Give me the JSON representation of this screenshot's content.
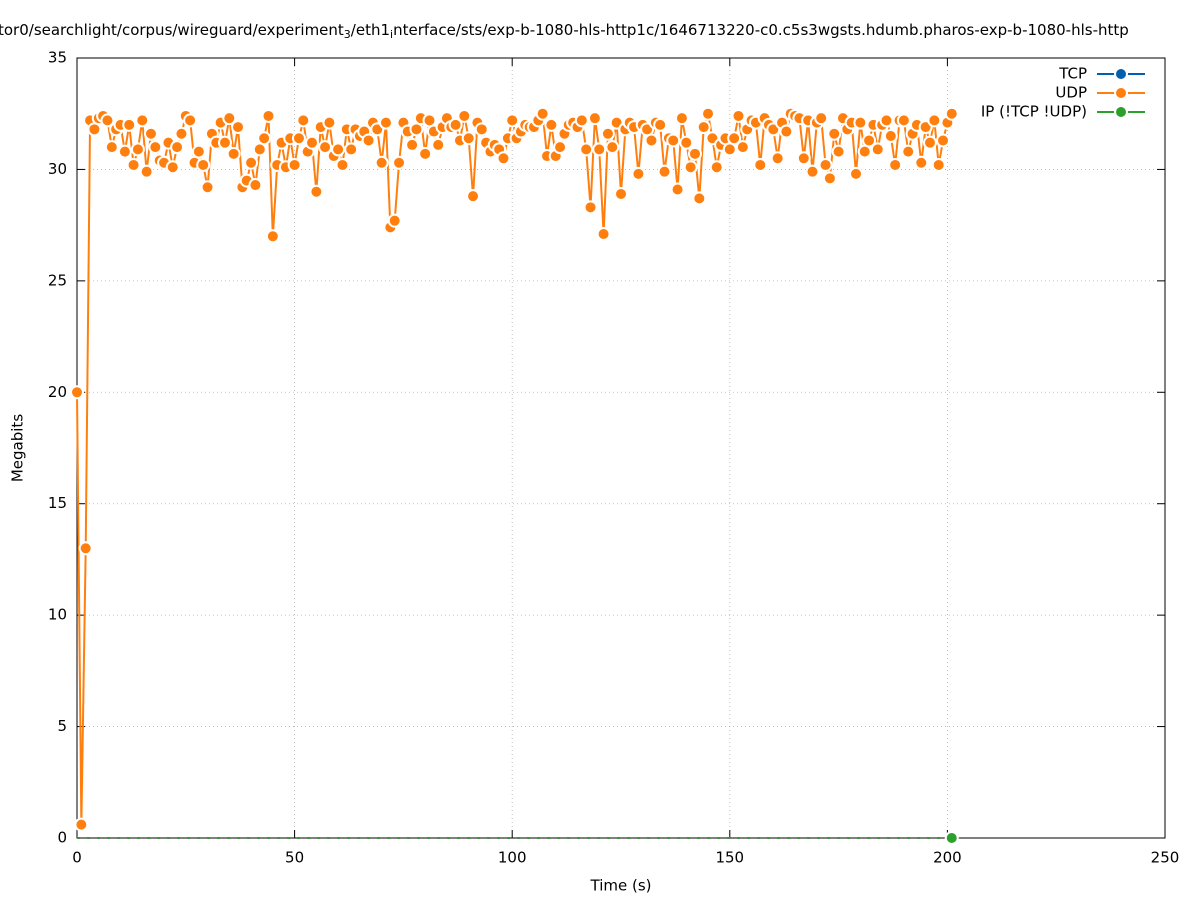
{
  "chart_data": {
    "type": "line",
    "title_parts": [
      "tor0/searchlight/corpus/wireguard/experiment",
      "3",
      "/eth1",
      "i",
      "nterface/sts/exp-b-1080-hls-http1c/1646713220-c0.c5s3wgsts.hdumb.pharos-exp-b-1080-hls-http"
    ],
    "xlabel": "Time (s)",
    "ylabel": "Megabits",
    "xlim": [
      0,
      250
    ],
    "ylim": [
      0,
      35
    ],
    "xticks": [
      0,
      50,
      100,
      150,
      200,
      250
    ],
    "yticks": [
      0,
      5,
      10,
      15,
      20,
      25,
      30,
      35
    ],
    "grid": true,
    "legend": "top-right",
    "x": [
      0,
      1,
      2,
      3,
      4,
      5,
      6,
      7,
      8,
      9,
      10,
      11,
      12,
      13,
      14,
      15,
      16,
      17,
      18,
      19,
      20,
      21,
      22,
      23,
      24,
      25,
      26,
      27,
      28,
      29,
      30,
      31,
      32,
      33,
      34,
      35,
      36,
      37,
      38,
      39,
      40,
      41,
      42,
      43,
      44,
      45,
      46,
      47,
      48,
      49,
      50,
      51,
      52,
      53,
      54,
      55,
      56,
      57,
      58,
      59,
      60,
      61,
      62,
      63,
      64,
      65,
      66,
      67,
      68,
      69,
      70,
      71,
      72,
      73,
      74,
      75,
      76,
      77,
      78,
      79,
      80,
      81,
      82,
      83,
      84,
      85,
      86,
      87,
      88,
      89,
      90,
      91,
      92,
      93,
      94,
      95,
      96,
      97,
      98,
      99,
      100,
      101,
      102,
      103,
      104,
      105,
      106,
      107,
      108,
      109,
      110,
      111,
      112,
      113,
      114,
      115,
      116,
      117,
      118,
      119,
      120,
      121,
      122,
      123,
      124,
      125,
      126,
      127,
      128,
      129,
      130,
      131,
      132,
      133,
      134,
      135,
      136,
      137,
      138,
      139,
      140,
      141,
      142,
      143,
      144,
      145,
      146,
      147,
      148,
      149,
      150,
      151,
      152,
      153,
      154,
      155,
      156,
      157,
      158,
      159,
      160,
      161,
      162,
      163,
      164,
      165,
      166,
      167,
      168,
      169,
      170,
      171,
      172,
      173,
      174,
      175,
      176,
      177,
      178,
      179,
      180,
      181,
      182,
      183,
      184,
      185,
      186,
      187,
      188,
      189,
      190,
      191,
      192,
      193,
      194,
      195,
      196,
      197,
      198,
      199,
      200,
      201
    ],
    "series": [
      {
        "name": "TCP",
        "color": "#0060ad",
        "values": [
          0,
          0,
          0,
          0,
          0,
          0,
          0,
          0,
          0,
          0,
          0,
          0,
          0,
          0,
          0,
          0,
          0,
          0,
          0,
          0,
          0,
          0,
          0,
          0,
          0,
          0,
          0,
          0,
          0,
          0,
          0,
          0,
          0,
          0,
          0,
          0,
          0,
          0,
          0,
          0,
          0,
          0,
          0,
          0,
          0,
          0,
          0,
          0,
          0,
          0,
          0,
          0,
          0,
          0,
          0,
          0,
          0,
          0,
          0,
          0,
          0,
          0,
          0,
          0,
          0,
          0,
          0,
          0,
          0,
          0,
          0,
          0,
          0,
          0,
          0,
          0,
          0,
          0,
          0,
          0,
          0,
          0,
          0,
          0,
          0,
          0,
          0,
          0,
          0,
          0,
          0,
          0,
          0,
          0,
          0,
          0,
          0,
          0,
          0,
          0,
          0,
          0,
          0,
          0,
          0,
          0,
          0,
          0,
          0,
          0,
          0,
          0,
          0,
          0,
          0,
          0,
          0,
          0,
          0,
          0,
          0,
          0,
          0,
          0,
          0,
          0,
          0,
          0,
          0,
          0,
          0,
          0,
          0,
          0,
          0,
          0,
          0,
          0,
          0,
          0,
          0,
          0,
          0,
          0,
          0,
          0,
          0,
          0,
          0,
          0,
          0,
          0,
          0,
          0,
          0,
          0,
          0,
          0,
          0,
          0,
          0,
          0,
          0,
          0,
          0,
          0,
          0,
          0,
          0,
          0,
          0,
          0,
          0,
          0,
          0,
          0,
          0,
          0,
          0,
          0,
          0,
          0,
          0,
          0,
          0,
          0,
          0,
          0,
          0,
          0,
          0,
          0,
          0,
          0,
          0,
          0,
          0,
          0,
          0,
          0,
          0,
          0
        ]
      },
      {
        "name": "UDP",
        "color": "#ff7f0e",
        "values": [
          20,
          0.6,
          13,
          32.2,
          31.8,
          32.3,
          32.4,
          32.2,
          31,
          31.8,
          32,
          30.8,
          32,
          30.2,
          30.9,
          32.2,
          29.9,
          31.6,
          31,
          30.4,
          30.3,
          31.2,
          30.1,
          31,
          31.6,
          32.4,
          32.2,
          30.3,
          30.8,
          30.2,
          29.2,
          31.6,
          31.2,
          32.1,
          31.2,
          32.3,
          30.7,
          31.9,
          29.2,
          29.5,
          30.3,
          29.3,
          30.9,
          31.4,
          32.4,
          27,
          30.2,
          31.2,
          30.1,
          31.4,
          30.2,
          31.4,
          32.2,
          30.8,
          31.2,
          29,
          31.9,
          31,
          32.1,
          30.6,
          30.9,
          30.2,
          31.8,
          30.9,
          31.8,
          31.5,
          31.7,
          31.3,
          32.1,
          31.8,
          30.3,
          32.1,
          27.4,
          27.7,
          30.3,
          32.1,
          31.7,
          31.1,
          31.8,
          32.3,
          30.7,
          32.2,
          31.7,
          31.1,
          31.9,
          32.3,
          31.9,
          32,
          31.3,
          32.4,
          31.4,
          28.8,
          32.1,
          31.8,
          31.2,
          30.8,
          31.1,
          30.9,
          30.5,
          31.4,
          32.2,
          31.4,
          31.7,
          32,
          31.9,
          31.9,
          32.2,
          32.5,
          30.6,
          32,
          30.6,
          31,
          31.6,
          32,
          32.1,
          31.9,
          32.2,
          30.9,
          28.3,
          32.3,
          30.9,
          27.1,
          31.6,
          31,
          32.1,
          28.9,
          31.8,
          32.1,
          31.9,
          29.8,
          32,
          31.8,
          31.3,
          32.1,
          32,
          29.9,
          31.4,
          31.3,
          29.1,
          32.3,
          31.2,
          30.1,
          30.7,
          28.7,
          31.9,
          32.5,
          31.4,
          30.1,
          31.1,
          31.4,
          30.9,
          31.4,
          32.4,
          31,
          31.8,
          32.2,
          32.1,
          30.2,
          32.3,
          32,
          31.8,
          30.5,
          32.1,
          31.7,
          32.5,
          32.4,
          32.3,
          30.5,
          32.2,
          29.9,
          32.1,
          32.3,
          30.2,
          29.6,
          31.6,
          30.8,
          32.3,
          31.8,
          32.1,
          29.8,
          32.1,
          30.8,
          31.3,
          32,
          30.9,
          32,
          32.2,
          31.5,
          30.2,
          32.2,
          32.2,
          30.8,
          31.6,
          32,
          30.3,
          31.9,
          31.2,
          32.2,
          30.2,
          31.3,
          32.1,
          32.5
        ]
      },
      {
        "name": "IP (!TCP  !UDP)",
        "color": "#2ca02c",
        "values": [
          0,
          0,
          0,
          0,
          0,
          0,
          0,
          0,
          0,
          0,
          0,
          0,
          0,
          0,
          0,
          0,
          0,
          0,
          0,
          0,
          0,
          0,
          0,
          0,
          0,
          0,
          0,
          0,
          0,
          0,
          0,
          0,
          0,
          0,
          0,
          0,
          0,
          0,
          0,
          0,
          0,
          0,
          0,
          0,
          0,
          0,
          0,
          0,
          0,
          0,
          0,
          0,
          0,
          0,
          0,
          0,
          0,
          0,
          0,
          0,
          0,
          0,
          0,
          0,
          0,
          0,
          0,
          0,
          0,
          0,
          0,
          0,
          0,
          0,
          0,
          0,
          0,
          0,
          0,
          0,
          0,
          0,
          0,
          0,
          0,
          0,
          0,
          0,
          0,
          0,
          0,
          0,
          0,
          0,
          0,
          0,
          0,
          0,
          0,
          0,
          0,
          0,
          0,
          0,
          0,
          0,
          0,
          0,
          0,
          0,
          0,
          0,
          0,
          0,
          0,
          0,
          0,
          0,
          0,
          0,
          0,
          0,
          0,
          0,
          0,
          0,
          0,
          0,
          0,
          0,
          0,
          0,
          0,
          0,
          0,
          0,
          0,
          0,
          0,
          0,
          0,
          0,
          0,
          0,
          0,
          0,
          0,
          0,
          0,
          0,
          0,
          0,
          0,
          0,
          0,
          0,
          0,
          0,
          0,
          0,
          0,
          0,
          0,
          0,
          0,
          0,
          0,
          0,
          0,
          0,
          0,
          0,
          0,
          0,
          0,
          0,
          0,
          0,
          0,
          0,
          0,
          0,
          0,
          0,
          0,
          0,
          0,
          0,
          0,
          0,
          0,
          0,
          0,
          0,
          0,
          0,
          0,
          0,
          0,
          0,
          0,
          0
        ]
      }
    ]
  }
}
